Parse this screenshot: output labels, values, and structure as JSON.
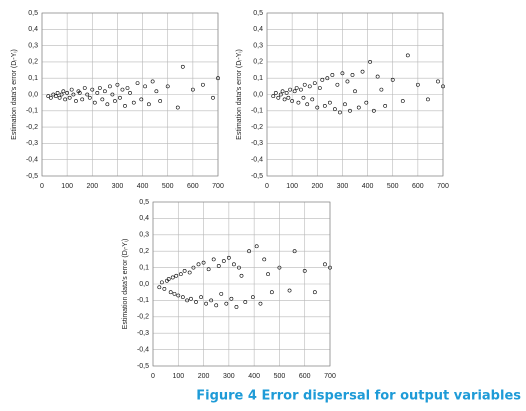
{
  "caption": "Figure 4 Error dispersal for output variables",
  "chart_data": [
    {
      "type": "scatter",
      "ylabel": "Estimation data's error  (Dᵢ-Yᵢ)",
      "color": "#000000",
      "grid": true,
      "xlim": [
        0,
        700
      ],
      "xticks": [
        0,
        100,
        200,
        300,
        400,
        500,
        600,
        700
      ],
      "ylim": [
        -0.5,
        0.5
      ],
      "yticks": [
        {
          "value": -0.5,
          "label": "-0,5"
        },
        {
          "value": -0.4,
          "label": "-0,4"
        },
        {
          "value": -0.3,
          "label": "-0,3"
        },
        {
          "value": -0.2,
          "label": "-0,2"
        },
        {
          "value": -0.1,
          "label": "-0,1"
        },
        {
          "value": 0,
          "label": "0,0"
        },
        {
          "value": 0.1,
          "label": "0,1"
        },
        {
          "value": 0.2,
          "label": "0,2"
        },
        {
          "value": 0.3,
          "label": "0,3"
        },
        {
          "value": 0.4,
          "label": "0,4"
        },
        {
          "value": 0.5,
          "label": "0,5"
        }
      ],
      "x": [
        25,
        35,
        45,
        55,
        62,
        70,
        78,
        85,
        92,
        100,
        110,
        118,
        125,
        135,
        145,
        150,
        160,
        170,
        180,
        190,
        200,
        210,
        220,
        230,
        240,
        250,
        260,
        270,
        280,
        290,
        300,
        310,
        320,
        330,
        340,
        350,
        365,
        380,
        395,
        410,
        425,
        440,
        455,
        470,
        500,
        560,
        540,
        600,
        640,
        680,
        700
      ],
      "y": [
        -0.01,
        -0.02,
        0,
        -0.01,
        0.01,
        -0.02,
        0,
        0.02,
        -0.03,
        0.01,
        -0.02,
        0.03,
        0,
        -0.04,
        0.02,
        0.01,
        -0.03,
        0.04,
        0,
        -0.02,
        0.03,
        -0.05,
        0.01,
        0.04,
        -0.03,
        0.02,
        -0.06,
        0.05,
        0,
        -0.04,
        0.06,
        -0.02,
        0.03,
        -0.07,
        0.04,
        0.01,
        -0.05,
        0.07,
        -0.03,
        0.05,
        -0.06,
        0.08,
        0.02,
        -0.04,
        0.05,
        0.17,
        -0.08,
        0.03,
        0.06,
        -0.02,
        0.1
      ]
    },
    {
      "type": "scatter",
      "ylabel": "Estimation data's error  (Dᵢ-Yᵢ)",
      "color": "#000000",
      "grid": true,
      "xlim": [
        0,
        700
      ],
      "xticks": [
        0,
        100,
        200,
        300,
        400,
        500,
        600,
        700
      ],
      "ylim": [
        -0.5,
        0.5
      ],
      "yticks": [
        {
          "value": -0.5,
          "label": "-0,5"
        },
        {
          "value": -0.4,
          "label": "-0,4"
        },
        {
          "value": -0.3,
          "label": "-0,3"
        },
        {
          "value": -0.2,
          "label": "-0,2"
        },
        {
          "value": -0.1,
          "label": "-0,1"
        },
        {
          "value": 0,
          "label": "0,0"
        },
        {
          "value": 0.1,
          "label": "0,1"
        },
        {
          "value": 0.2,
          "label": "0,2"
        },
        {
          "value": 0.3,
          "label": "0,3"
        },
        {
          "value": 0.4,
          "label": "0,4"
        },
        {
          "value": 0.5,
          "label": "0,5"
        }
      ],
      "x": [
        25,
        35,
        45,
        55,
        62,
        70,
        78,
        85,
        92,
        100,
        110,
        118,
        125,
        135,
        145,
        150,
        160,
        170,
        180,
        190,
        200,
        210,
        220,
        230,
        240,
        250,
        260,
        270,
        280,
        290,
        300,
        310,
        320,
        330,
        340,
        350,
        365,
        380,
        395,
        410,
        425,
        440,
        455,
        470,
        500,
        560,
        540,
        600,
        640,
        680,
        700
      ],
      "y": [
        -0.01,
        0.01,
        -0.02,
        0,
        0.02,
        -0.03,
        0.01,
        -0.02,
        0.03,
        -0.04,
        0.02,
        0.04,
        -0.05,
        0.03,
        -0.02,
        0.06,
        -0.06,
        0.05,
        -0.03,
        0.07,
        -0.08,
        0.04,
        0.09,
        -0.07,
        0.1,
        -0.05,
        0.12,
        -0.09,
        0.06,
        -0.11,
        0.13,
        -0.06,
        0.08,
        -0.1,
        0.12,
        0.02,
        -0.08,
        0.14,
        -0.05,
        0.2,
        -0.1,
        0.11,
        0.03,
        -0.07,
        0.09,
        0.24,
        -0.04,
        0.06,
        -0.03,
        0.08,
        0.05
      ]
    },
    {
      "type": "scatter",
      "ylabel": "Estimation data's error  (Dᵢ-Yᵢ)",
      "color": "#000000",
      "grid": true,
      "xlim": [
        0,
        700
      ],
      "xticks": [
        0,
        100,
        200,
        300,
        400,
        500,
        600,
        700
      ],
      "ylim": [
        -0.5,
        0.5
      ],
      "yticks": [
        {
          "value": -0.5,
          "label": "-0,5"
        },
        {
          "value": -0.4,
          "label": "-0,4"
        },
        {
          "value": -0.3,
          "label": "-0,3"
        },
        {
          "value": -0.2,
          "label": "-0,2"
        },
        {
          "value": -0.1,
          "label": "-0,1"
        },
        {
          "value": 0,
          "label": "0,0"
        },
        {
          "value": 0.1,
          "label": "0,1"
        },
        {
          "value": 0.2,
          "label": "0,2"
        },
        {
          "value": 0.3,
          "label": "0,3"
        },
        {
          "value": 0.4,
          "label": "0,4"
        },
        {
          "value": 0.5,
          "label": "0,5"
        }
      ],
      "x": [
        25,
        35,
        45,
        55,
        62,
        70,
        78,
        85,
        92,
        100,
        110,
        118,
        125,
        135,
        145,
        150,
        160,
        170,
        180,
        190,
        200,
        210,
        220,
        230,
        240,
        250,
        260,
        270,
        280,
        290,
        300,
        310,
        320,
        330,
        340,
        350,
        365,
        380,
        395,
        410,
        425,
        440,
        455,
        470,
        500,
        560,
        540,
        600,
        640,
        680,
        700
      ],
      "y": [
        -0.02,
        0.01,
        -0.03,
        0.02,
        0.03,
        -0.05,
        0.04,
        -0.06,
        0.05,
        -0.07,
        0.06,
        -0.08,
        0.08,
        -0.1,
        0.07,
        -0.09,
        0.1,
        -0.11,
        0.12,
        -0.08,
        0.13,
        -0.12,
        0.09,
        -0.1,
        0.15,
        -0.13,
        0.11,
        -0.06,
        0.14,
        -0.12,
        0.16,
        -0.09,
        0.12,
        -0.14,
        0.1,
        0.05,
        -0.11,
        0.2,
        -0.08,
        0.23,
        -0.12,
        0.15,
        0.06,
        -0.05,
        0.1,
        0.2,
        -0.04,
        0.08,
        -0.05,
        0.12,
        0.1
      ]
    }
  ]
}
